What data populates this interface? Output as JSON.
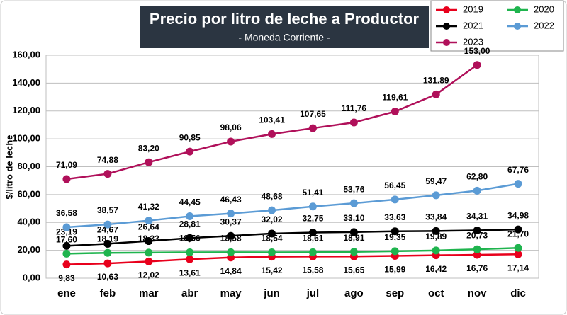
{
  "chart_data": {
    "type": "line",
    "title": "Precio por litro de leche a Productor",
    "subtitle": "- Moneda Corriente -",
    "y_label": "$/litro de leche",
    "categories": [
      "ene",
      "feb",
      "mar",
      "abr",
      "may",
      "jun",
      "jul",
      "ago",
      "sep",
      "oct",
      "nov",
      "dic"
    ],
    "ylim": [
      0,
      160
    ],
    "yticks": [
      {
        "value": 0,
        "label": "0,00"
      },
      {
        "value": 20,
        "label": "20,00"
      },
      {
        "value": 40,
        "label": "40,00"
      },
      {
        "value": 60,
        "label": "60,00"
      },
      {
        "value": 80,
        "label": "80,00"
      },
      {
        "value": 100,
        "label": "100,00"
      },
      {
        "value": 120,
        "label": "120,00"
      },
      {
        "value": 140,
        "label": "140,00"
      },
      {
        "value": 160,
        "label": "160,00"
      }
    ],
    "grid": true,
    "series": [
      {
        "name": "2019",
        "color": "#e8001c",
        "values": [
          9.83,
          10.63,
          12.02,
          13.61,
          14.84,
          15.42,
          15.58,
          15.65,
          15.99,
          16.42,
          16.76,
          17.14
        ],
        "value_labels": [
          "9,83",
          "10,63",
          "12,02",
          "13,61",
          "14,84",
          "15,42",
          "15,58",
          "15,65",
          "15,99",
          "16,42",
          "16,76",
          "17,14"
        ]
      },
      {
        "name": "2020",
        "color": "#1fb44e",
        "values": [
          17.6,
          18.19,
          18.33,
          18.56,
          18.58,
          18.54,
          18.61,
          18.91,
          19.35,
          19.89,
          20.73,
          21.7
        ],
        "value_labels": [
          "17,60",
          "18,19",
          "18,33",
          "18,56",
          "18,58",
          "18,54",
          "18,61",
          "18,91",
          "19,35",
          "19,89",
          "20,73",
          "21,70"
        ]
      },
      {
        "name": "2021",
        "color": "#000000",
        "values": [
          23.19,
          24.67,
          26.64,
          28.81,
          30.37,
          32.02,
          32.75,
          33.1,
          33.63,
          33.84,
          34.31,
          34.98
        ],
        "value_labels": [
          "23,19",
          "24,67",
          "26,64",
          "28,81",
          "30,37",
          "32,02",
          "32,75",
          "33,10",
          "33,63",
          "33,84",
          "34,31",
          "34,98"
        ]
      },
      {
        "name": "2022",
        "color": "#5b9bd5",
        "values": [
          36.58,
          38.57,
          41.32,
          44.45,
          46.43,
          48.68,
          51.41,
          53.76,
          56.45,
          59.47,
          62.8,
          67.76
        ],
        "value_labels": [
          "36,58",
          "38,57",
          "41,32",
          "44,45",
          "46,43",
          "48,68",
          "51,41",
          "53,76",
          "56,45",
          "59,47",
          "62,80",
          "67,76"
        ]
      },
      {
        "name": "2023",
        "color": "#b0105a",
        "values": [
          71.09,
          74.88,
          83.2,
          90.85,
          98.06,
          103.41,
          107.65,
          111.76,
          119.61,
          131.89,
          153.0,
          null
        ],
        "value_labels": [
          "71,09",
          "74,88",
          "83,20",
          "90,85",
          "98,06",
          "103,41",
          "107,65",
          "111,76",
          "119,61",
          "131.89",
          "153,00",
          null
        ]
      }
    ]
  }
}
